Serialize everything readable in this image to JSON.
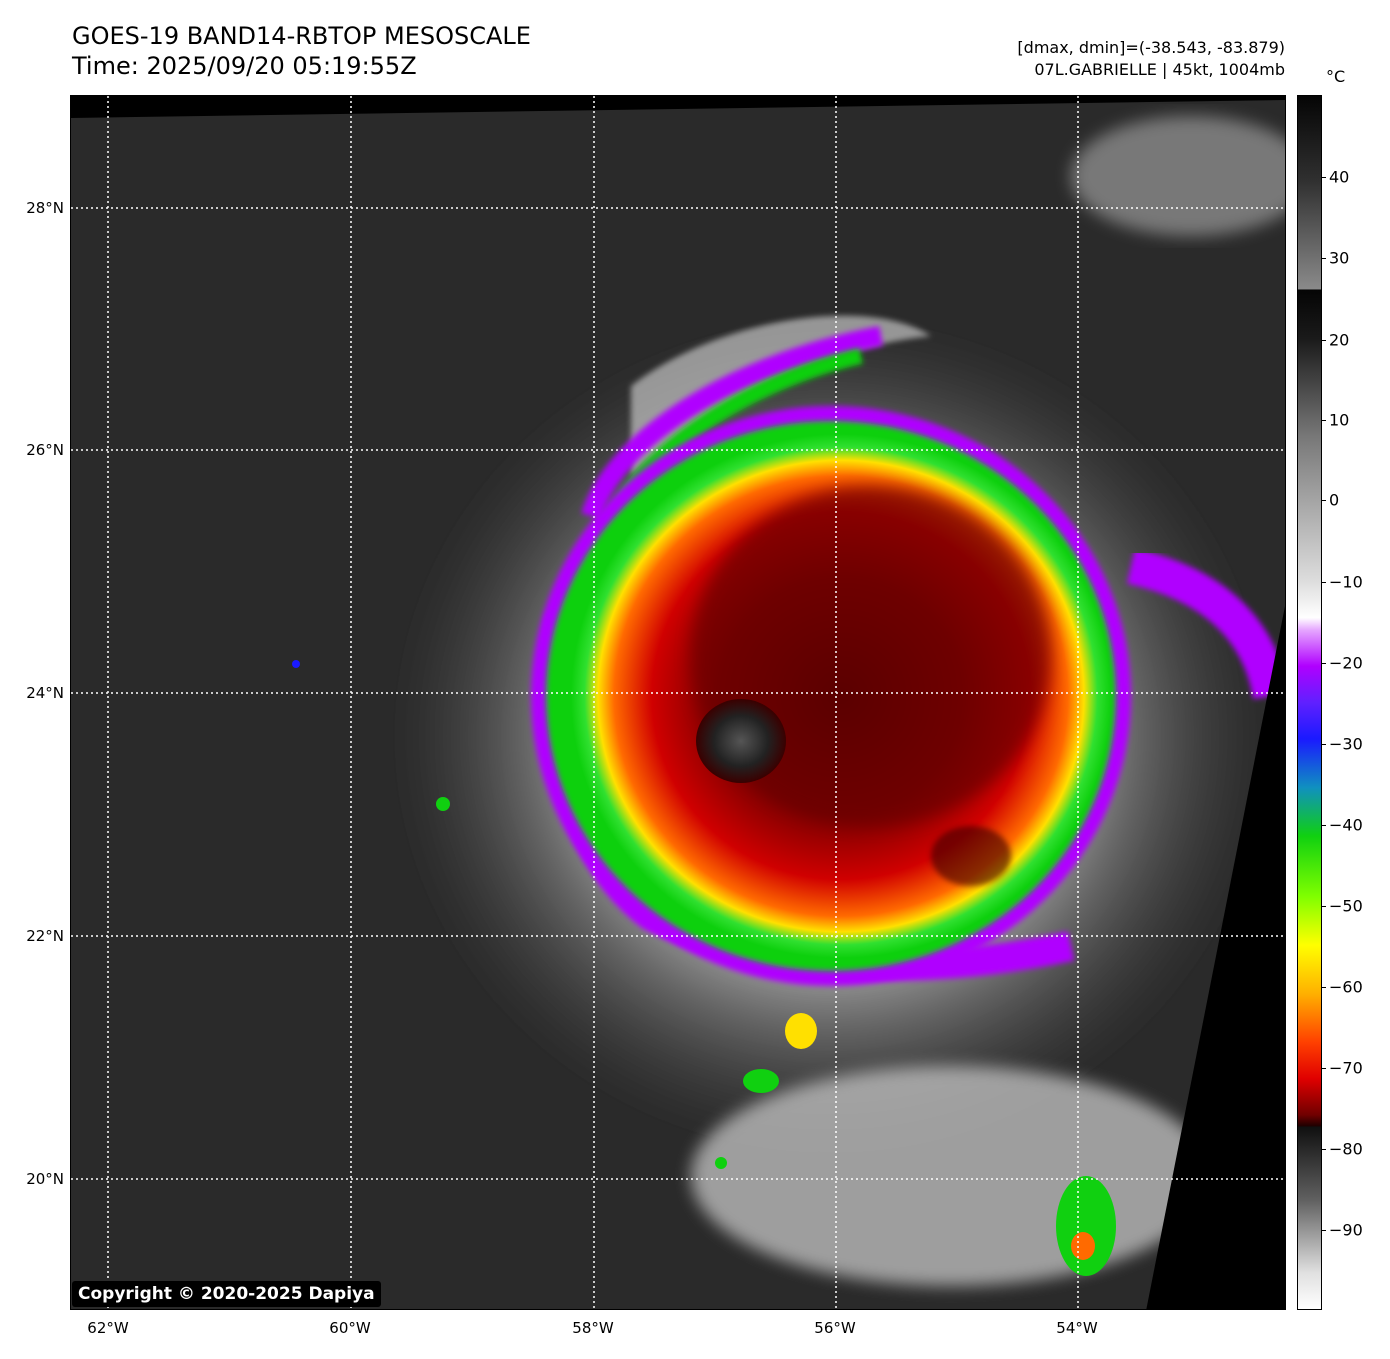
{
  "header": {
    "title_line1": "GOES-19 BAND14-RBTOP MESOSCALE",
    "title_line2": "Time: 2025/09/20 05:19:55Z",
    "info_line1": "[dmax, dmin]=(-38.543, -83.879)",
    "info_line2": "07L.GABRIELLE | 45kt, 1004mb"
  },
  "map": {
    "lat_labels": [
      "28°N",
      "26°N",
      "24°N",
      "22°N",
      "20°N"
    ],
    "lon_labels": [
      "62°W",
      "60°W",
      "58°W",
      "56°W",
      "54°W"
    ],
    "copyright": "Copyright © 2020-2025 Dapiya"
  },
  "colorbar": {
    "unit": "°C",
    "ticks": [
      "40",
      "30",
      "20",
      "10",
      "0",
      "−10",
      "−20",
      "−30",
      "−40",
      "−50",
      "−60",
      "−70",
      "−80",
      "−90"
    ],
    "colors": {
      "warm_gray": "#303030",
      "violet": "#b000ff",
      "blue": "#1a1aff",
      "green": "#10d010",
      "yellow": "#ffff00",
      "red": "#e00000",
      "dark_red": "#500000"
    }
  }
}
